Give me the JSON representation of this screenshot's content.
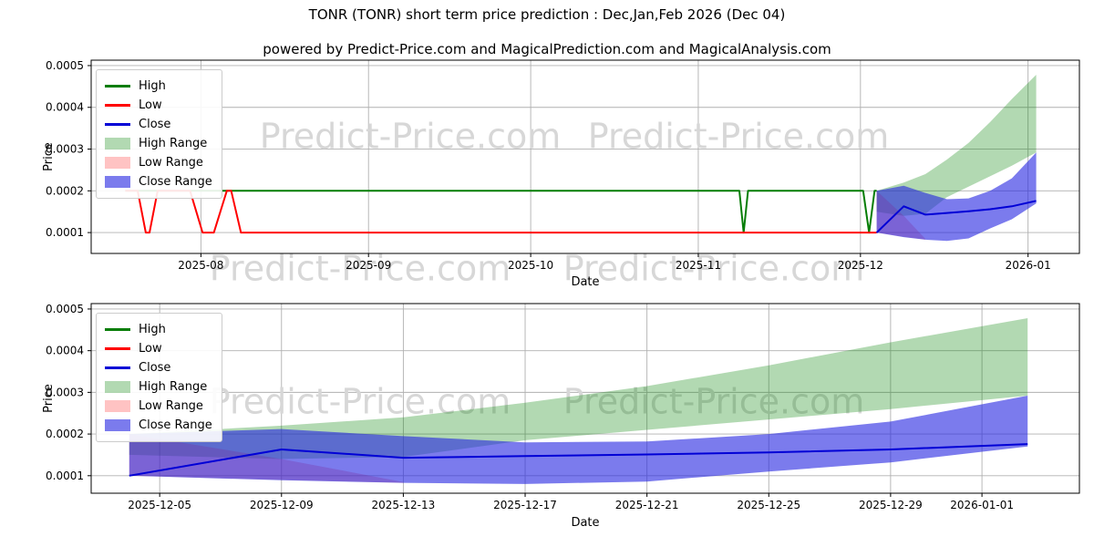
{
  "title": "TONR (TONR) short term price prediction : Dec,Jan,Feb 2026 (Dec 04)",
  "subtitle": "powered by Predict-Price.com and MagicalPrediction.com and MagicalAnalysis.com",
  "watermark": "Predict-Price.com",
  "colors": {
    "high": "#067d06",
    "low": "#ff0000",
    "close": "#0000d6",
    "high_range": "rgba(0,128,0,0.30)",
    "low_range": "rgba(255,40,40,0.28)",
    "close_range": "rgba(35,35,225,0.60)",
    "grid": "#b0b0b0",
    "spine": "#000000",
    "watermark": "#d7d7d7"
  },
  "legend_items": [
    {
      "label": "High",
      "type": "line",
      "color_key": "high"
    },
    {
      "label": "Low",
      "type": "line",
      "color_key": "low"
    },
    {
      "label": "Close",
      "type": "line",
      "color_key": "close"
    },
    {
      "label": "High Range",
      "type": "patch",
      "color_key": "high_range"
    },
    {
      "label": "Low Range",
      "type": "patch",
      "color_key": "low_range"
    },
    {
      "label": "Close Range",
      "type": "patch",
      "color_key": "close_range"
    }
  ],
  "chart_data": [
    {
      "type": "line",
      "name": "history-and-prediction",
      "xlabel": "Date",
      "ylabel": "Price",
      "x_unit": "days since 2025-07-01",
      "xdomain": [
        10.7,
        193.5
      ],
      "ylim": [
        5e-05,
        0.000513
      ],
      "grid": true,
      "yticks": [
        {
          "value": 0.0001,
          "label": "0.0001"
        },
        {
          "value": 0.0002,
          "label": "0.0002"
        },
        {
          "value": 0.0003,
          "label": "0.0003"
        },
        {
          "value": 0.0004,
          "label": "0.0004"
        },
        {
          "value": 0.0005,
          "label": "0.0005"
        }
      ],
      "xticks": [
        {
          "x": 31,
          "label": "2025-08"
        },
        {
          "x": 62,
          "label": "2025-09"
        },
        {
          "x": 92,
          "label": "2025-10"
        },
        {
          "x": 123,
          "label": "2025-11"
        },
        {
          "x": 153,
          "label": "2025-12"
        },
        {
          "x": 184,
          "label": "2026-01"
        }
      ],
      "bands": [
        {
          "name": "high-range-band",
          "color_key": "high_range",
          "x": [
            156,
            161,
            165,
            169,
            173,
            177,
            181,
            185.5
          ],
          "top": [
            0.0002,
            0.00022,
            0.00024,
            0.000275,
            0.000315,
            0.000365,
            0.00042,
            0.000478
          ],
          "bottom": [
            0.00015,
            0.00014,
            0.000145,
            0.000185,
            0.00021,
            0.000235,
            0.00026,
            0.000292
          ]
        },
        {
          "name": "low-range-band",
          "color_key": "low_range",
          "x": [
            156,
            161,
            165
          ],
          "top": [
            0.0002,
            0.00014,
            8.5e-05
          ],
          "bottom": [
            0.0001,
            9e-05,
            8.3e-05
          ]
        },
        {
          "name": "close-range-band",
          "color_key": "close_range",
          "x": [
            156,
            161,
            165,
            169,
            173,
            177,
            181,
            185.5
          ],
          "top": [
            0.0002,
            0.000212,
            0.000195,
            0.00018,
            0.000182,
            0.0002,
            0.00023,
            0.000292
          ],
          "bottom": [
            0.0001,
            8.9e-05,
            8.3e-05,
            8e-05,
            8.6e-05,
            0.00011,
            0.000132,
            0.00017
          ]
        }
      ],
      "lines": [
        {
          "name": "high-line",
          "color_key": "high",
          "x": [
            17,
            130.6,
            131.4,
            132.2,
            153.5,
            154.6,
            155.6,
            156
          ],
          "y": [
            0.0002,
            0.0002,
            0.0001,
            0.0002,
            0.0002,
            0.0001,
            0.0002,
            0.0002
          ]
        },
        {
          "name": "low-line",
          "color_key": "low",
          "x": [
            17,
            19.3,
            20.8,
            21.5,
            23,
            29,
            31.3,
            33.4,
            35.8,
            36.6,
            38.4,
            156
          ],
          "y": [
            0.0002,
            0.0002,
            0.0001,
            0.0001,
            0.0002,
            0.0002,
            0.0001,
            0.0001,
            0.0002,
            0.0002,
            0.0001,
            0.0001
          ]
        },
        {
          "name": "close-line",
          "color_key": "close",
          "x": [
            156,
            161,
            165,
            169,
            173,
            177,
            181,
            185.5
          ],
          "y": [
            0.0001,
            0.000163,
            0.000143,
            0.000147,
            0.000151,
            0.000156,
            0.000163,
            0.000176
          ]
        }
      ]
    },
    {
      "type": "line",
      "name": "prediction-detail",
      "xlabel": "Date",
      "ylabel": "Price",
      "x_unit": "days since 2025-12-04",
      "xdomain": [
        -1.25,
        31.2
      ],
      "ylim": [
        5.8e-05,
        0.000513
      ],
      "grid": true,
      "yticks": [
        {
          "value": 0.0001,
          "label": "0.0001"
        },
        {
          "value": 0.0002,
          "label": "0.0002"
        },
        {
          "value": 0.0003,
          "label": "0.0003"
        },
        {
          "value": 0.0004,
          "label": "0.0004"
        },
        {
          "value": 0.0005,
          "label": "0.0005"
        }
      ],
      "xticks": [
        {
          "x": 1,
          "label": "2025-12-05"
        },
        {
          "x": 5,
          "label": "2025-12-09"
        },
        {
          "x": 9,
          "label": "2025-12-13"
        },
        {
          "x": 13,
          "label": "2025-12-17"
        },
        {
          "x": 17,
          "label": "2025-12-21"
        },
        {
          "x": 21,
          "label": "2025-12-25"
        },
        {
          "x": 25,
          "label": "2025-12-29"
        },
        {
          "x": 28,
          "label": "2026-01-01"
        }
      ],
      "bands": [
        {
          "name": "high-range-band",
          "color_key": "high_range",
          "x": [
            0,
            5,
            9,
            13,
            17,
            21,
            25,
            29.5
          ],
          "top": [
            0.0002,
            0.00022,
            0.00024,
            0.000275,
            0.000315,
            0.000365,
            0.00042,
            0.000478
          ],
          "bottom": [
            0.00015,
            0.00014,
            0.000145,
            0.000185,
            0.00021,
            0.000235,
            0.00026,
            0.000292
          ]
        },
        {
          "name": "low-range-band",
          "color_key": "low_range",
          "x": [
            0,
            5,
            9
          ],
          "top": [
            0.0002,
            0.00014,
            8.5e-05
          ],
          "bottom": [
            0.0001,
            9e-05,
            8.3e-05
          ]
        },
        {
          "name": "close-range-band",
          "color_key": "close_range",
          "x": [
            0,
            5,
            9,
            13,
            17,
            21,
            25,
            29.5
          ],
          "top": [
            0.0002,
            0.000212,
            0.000195,
            0.00018,
            0.000182,
            0.0002,
            0.00023,
            0.000292
          ],
          "bottom": [
            0.0001,
            8.9e-05,
            8.3e-05,
            8e-05,
            8.6e-05,
            0.00011,
            0.000132,
            0.00017
          ]
        }
      ],
      "lines": [
        {
          "name": "close-line",
          "color_key": "close",
          "x": [
            0,
            5,
            9,
            13,
            17,
            21,
            25,
            29.5
          ],
          "y": [
            0.0001,
            0.000163,
            0.000143,
            0.000147,
            0.000151,
            0.000156,
            0.000163,
            0.000176
          ]
        }
      ]
    }
  ]
}
